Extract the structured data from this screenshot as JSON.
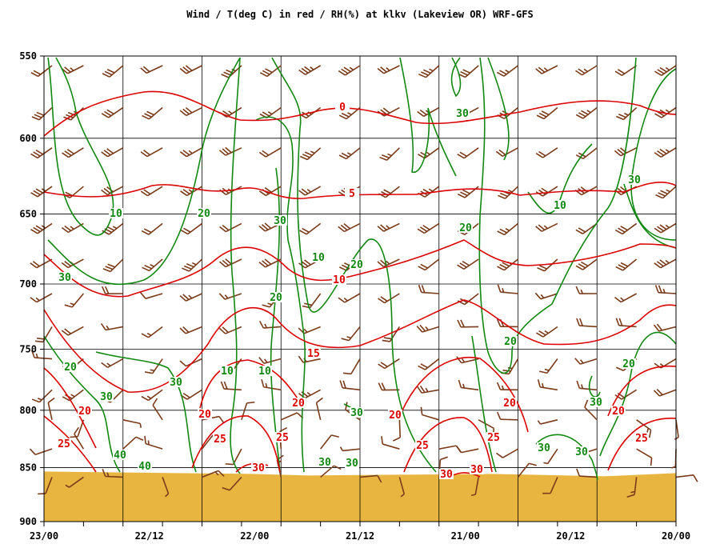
{
  "chart_data": {
    "type": "line",
    "title": "Wind / T(deg C) in red / RH(%) at klkv (Lakeview OR)  WRF-GFS",
    "y_axis": {
      "ticks": [
        "550",
        "600",
        "650",
        "700",
        "750",
        "800",
        "850",
        "900"
      ],
      "values": [
        550,
        600,
        650,
        700,
        750,
        800,
        850,
        900
      ],
      "scale": "log-pressure",
      "inverted": true
    },
    "x_axis": {
      "tick_labels": [
        "23/00",
        "22/12",
        "22/00",
        "21/12",
        "21/00",
        "20/12",
        "20/00"
      ],
      "note": "time runs right-to-left, 3-hourly minor ticks"
    },
    "grid": true,
    "colors": {
      "temperature": "#dd0000",
      "humidity": "#118811",
      "wind": "#7a3b1b",
      "terrain": "#e8b640"
    },
    "series": [
      {
        "name": "T(deg C)",
        "isolines": [
          {
            "level": "0",
            "label_positions_hr": [
              [
                24.0,
                578
              ]
            ]
          },
          {
            "level": "5",
            "label_positions_hr": [
              [
                24.0,
                640
              ]
            ]
          },
          {
            "level": "10",
            "label_positions_hr": [
              [
                27.0,
                697
              ]
            ]
          },
          {
            "level": "15",
            "label_positions_hr": [
              [
                29.0,
                747
              ]
            ]
          },
          {
            "level": "20",
            "label_positions_hr": [
              [
                43.0,
                808
              ],
              [
                18.0,
                808
              ],
              [
                6.0,
                808
              ]
            ]
          },
          {
            "level": "25",
            "label_positions_hr": [
              [
                44.0,
                833
              ],
              [
                19.0,
                833
              ],
              [
                10.0,
                833
              ],
              [
                5.0,
                833
              ]
            ]
          },
          {
            "level": "30",
            "label_positions_hr": [
              [
                24.0,
                850
              ],
              [
                12.0,
                853
              ],
              [
                11.0,
                853
              ]
            ]
          }
        ],
        "label_texts": [
          "0",
          "5",
          "10",
          "15",
          "20",
          "25",
          "30"
        ]
      },
      {
        "name": "RH(%)",
        "isolines": [
          {
            "level": "10",
            "labels": [
              "10",
              "10",
              "10",
              "10"
            ]
          },
          {
            "level": "20",
            "labels": [
              "20",
              "20",
              "20",
              "20",
              "20",
              "20",
              "20"
            ]
          },
          {
            "level": "30",
            "labels": [
              "30",
              "30",
              "30",
              "30",
              "30",
              "30",
              "30",
              "30",
              "30",
              "30"
            ]
          }
        ]
      },
      {
        "name": "Wind",
        "note": "wind barbs at every 3-hourly time and 25 hPa level, westerly/southwesterly aloft, variable near surface"
      }
    ],
    "terrain_top_hpa": 855
  }
}
